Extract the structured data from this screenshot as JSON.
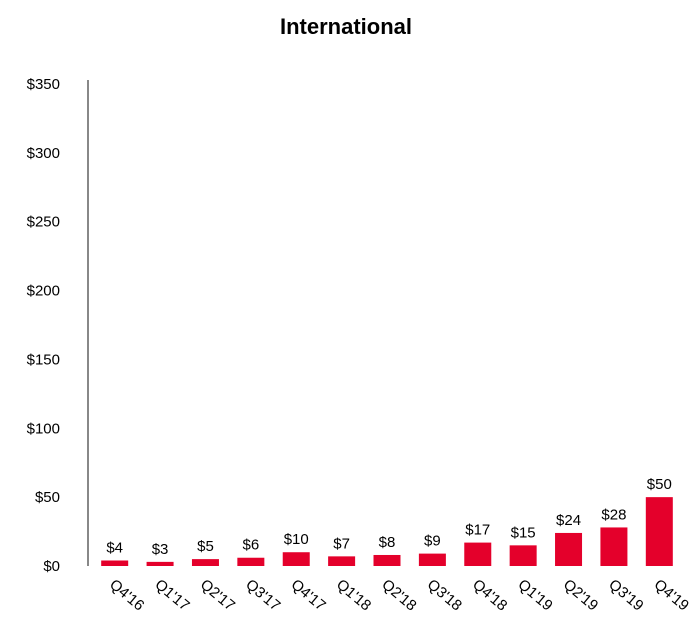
{
  "chart_data": {
    "type": "bar",
    "title": "International",
    "xlabel": "",
    "ylabel": "",
    "categories": [
      "Q4'16",
      "Q1'17",
      "Q2'17",
      "Q3'17",
      "Q4'17",
      "Q1'18",
      "Q2'18",
      "Q3'18",
      "Q4'18",
      "Q1'19",
      "Q2'19",
      "Q3'19",
      "Q4'19"
    ],
    "values": [
      4,
      3,
      5,
      6,
      10,
      7,
      8,
      9,
      17,
      15,
      24,
      28,
      50
    ],
    "data_labels": [
      "$4",
      "$3",
      "$5",
      "$6",
      "$10",
      "$7",
      "$8",
      "$9",
      "$17",
      "$15",
      "$24",
      "$28",
      "$50"
    ],
    "ylim": [
      0,
      350
    ],
    "yticks": [
      0,
      50,
      100,
      150,
      200,
      250,
      300,
      350
    ],
    "ytick_labels": [
      "$0",
      "$50",
      "$100",
      "$150",
      "$200",
      "$250",
      "$300",
      "$350"
    ],
    "grid": false,
    "legend": "none",
    "bar_color": "#E4002B",
    "axis_color": "#888888"
  }
}
